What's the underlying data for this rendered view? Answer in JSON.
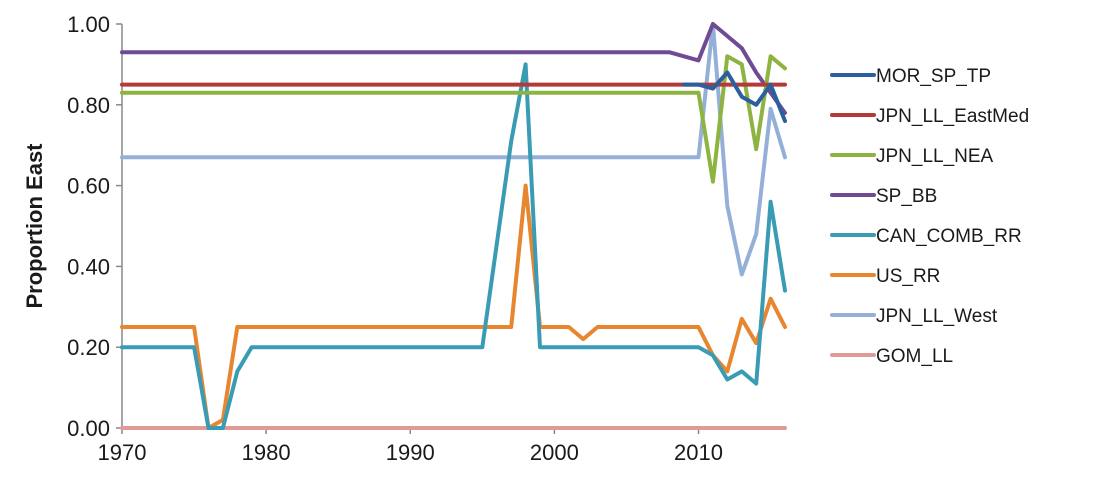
{
  "chart_data": {
    "type": "line",
    "ylabel": "Proportion East",
    "xlabel": "",
    "xlim": [
      1970,
      2016
    ],
    "ylim": [
      0,
      1
    ],
    "x_ticks": [
      1970,
      1980,
      1990,
      2000,
      2010
    ],
    "y_ticks": [
      "0.00",
      "0.20",
      "0.40",
      "0.60",
      "0.80",
      "1.00"
    ],
    "grid": false,
    "legend_position": "right",
    "series": [
      {
        "name": "MOR_SP_TP",
        "color": "#2c5f9e",
        "points": [
          [
            2009,
            0.85
          ],
          [
            2010,
            0.85
          ],
          [
            2011,
            0.84
          ],
          [
            2012,
            0.88
          ],
          [
            2013,
            0.82
          ],
          [
            2014,
            0.8
          ],
          [
            2015,
            0.85
          ],
          [
            2016,
            0.76
          ]
        ]
      },
      {
        "name": "JPN_LL_EastMed",
        "color": "#b33a36",
        "points": [
          [
            1970,
            0.85
          ],
          [
            2016,
            0.85
          ]
        ]
      },
      {
        "name": "JPN_LL_NEA",
        "color": "#8db341",
        "points": [
          [
            1970,
            0.83
          ],
          [
            2009,
            0.83
          ],
          [
            2010,
            0.83
          ],
          [
            2011,
            0.61
          ],
          [
            2012,
            0.92
          ],
          [
            2013,
            0.9
          ],
          [
            2014,
            0.69
          ],
          [
            2015,
            0.92
          ],
          [
            2016,
            0.89
          ]
        ]
      },
      {
        "name": "SP_BB",
        "color": "#6f4b94",
        "points": [
          [
            1970,
            0.93
          ],
          [
            2008,
            0.93
          ],
          [
            2010,
            0.91
          ],
          [
            2011,
            1.0
          ],
          [
            2013,
            0.94
          ],
          [
            2014,
            0.88
          ],
          [
            2016,
            0.78
          ]
        ]
      },
      {
        "name": "CAN_COMB_RR",
        "color": "#3a9bb5",
        "points": [
          [
            1970,
            0.2
          ],
          [
            1975,
            0.2
          ],
          [
            1976,
            0.0
          ],
          [
            1977,
            0.0
          ],
          [
            1978,
            0.14
          ],
          [
            1979,
            0.2
          ],
          [
            1995,
            0.2
          ],
          [
            1997,
            0.71
          ],
          [
            1998,
            0.9
          ],
          [
            1999,
            0.2
          ],
          [
            2010,
            0.2
          ],
          [
            2011,
            0.18
          ],
          [
            2012,
            0.12
          ],
          [
            2013,
            0.14
          ],
          [
            2014,
            0.11
          ],
          [
            2015,
            0.56
          ],
          [
            2016,
            0.34
          ]
        ]
      },
      {
        "name": "US_RR",
        "color": "#e8862f",
        "points": [
          [
            1970,
            0.25
          ],
          [
            1974,
            0.25
          ],
          [
            1975,
            0.25
          ],
          [
            1976,
            0.0
          ],
          [
            1977,
            0.02
          ],
          [
            1978,
            0.25
          ],
          [
            1997,
            0.25
          ],
          [
            1998,
            0.6
          ],
          [
            1999,
            0.25
          ],
          [
            2001,
            0.25
          ],
          [
            2002,
            0.22
          ],
          [
            2003,
            0.25
          ],
          [
            2010,
            0.25
          ],
          [
            2011,
            0.18
          ],
          [
            2012,
            0.14
          ],
          [
            2013,
            0.27
          ],
          [
            2014,
            0.21
          ],
          [
            2015,
            0.32
          ],
          [
            2016,
            0.25
          ]
        ]
      },
      {
        "name": "JPN_LL_West",
        "color": "#94b0d9",
        "points": [
          [
            1970,
            0.67
          ],
          [
            2010,
            0.67
          ],
          [
            2011,
            1.0
          ],
          [
            2012,
            0.55
          ],
          [
            2013,
            0.38
          ],
          [
            2014,
            0.48
          ],
          [
            2015,
            0.79
          ],
          [
            2016,
            0.67
          ]
        ]
      },
      {
        "name": "GOM_LL",
        "color": "#e39a97",
        "points": [
          [
            1970,
            0.0
          ],
          [
            2016,
            0.0
          ]
        ]
      }
    ]
  }
}
